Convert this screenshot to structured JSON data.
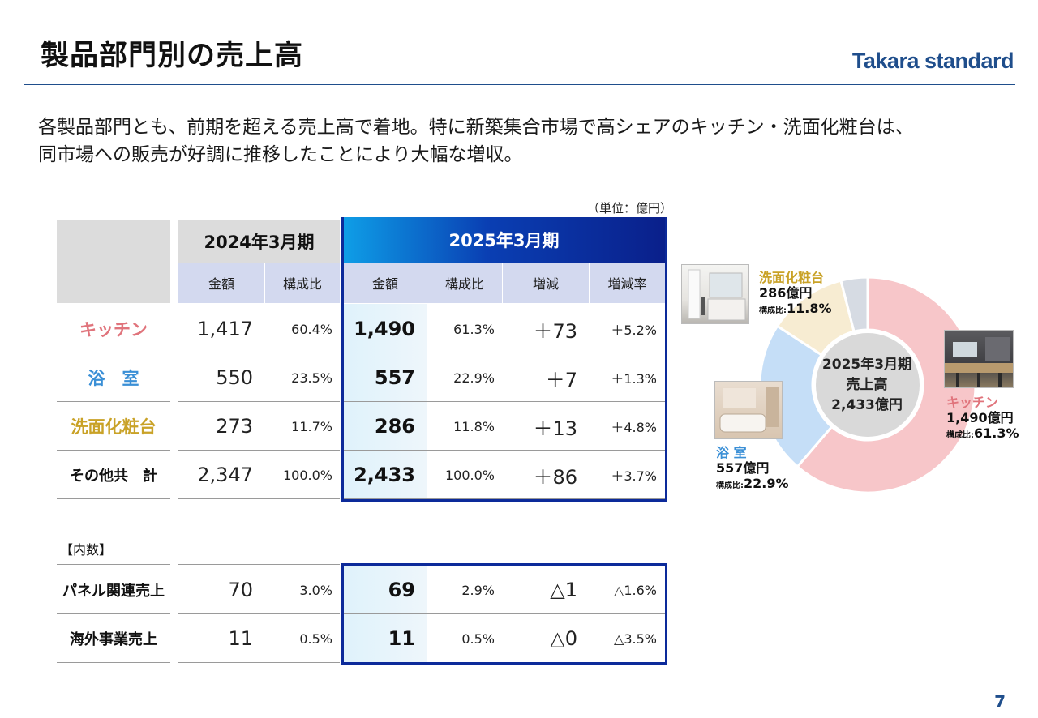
{
  "header": {
    "title": "製品部門別の売上高",
    "logo_text": "Takara standard"
  },
  "lead": {
    "line1": "各製品部門とも、前期を超える売上高で着地。特に新築集合市場で高シェアのキッチン・洗面化粧台は、",
    "line2": "同市場への販売が好調に推移したことにより大幅な増収。"
  },
  "unit_note": "（単位：億円）",
  "table": {
    "period_prev": "2024年3月期",
    "period_curr": "2025年3月期",
    "col_amount": "金額",
    "col_share": "構成比",
    "col_change": "増減",
    "col_rate": "増減率",
    "rows": [
      {
        "label": "キッチン",
        "color": "#e0747c",
        "prev_amount": "1,417",
        "prev_share": "60.4%",
        "curr_amount": "1,490",
        "curr_share": "61.3%",
        "change": "＋73",
        "rate": "＋5.2%"
      },
      {
        "label": "浴　室",
        "color": "#3a8fd6",
        "prev_amount": "550",
        "prev_share": "23.5%",
        "curr_amount": "557",
        "curr_share": "22.9%",
        "change": "＋7",
        "rate": "＋1.3%"
      },
      {
        "label": "洗面化粧台",
        "color": "#c9a227",
        "prev_amount": "273",
        "prev_share": "11.7%",
        "curr_amount": "286",
        "curr_share": "11.8%",
        "change": "＋13",
        "rate": "＋4.8%"
      },
      {
        "label": "その他共　計",
        "color": "#111111",
        "prev_amount": "2,347",
        "prev_share": "100.0%",
        "curr_amount": "2,433",
        "curr_share": "100.0%",
        "change": "＋86",
        "rate": "＋3.7%"
      }
    ],
    "breakdown_label": "【内数】",
    "breakdown_rows": [
      {
        "label": "パネル関連売上",
        "prev_amount": "70",
        "prev_share": "3.0%",
        "curr_amount": "69",
        "curr_share": "2.9%",
        "change": "△1",
        "rate": "△1.6%"
      },
      {
        "label": "海外事業売上",
        "prev_amount": "11",
        "prev_share": "0.5%",
        "curr_amount": "11",
        "curr_share": "0.5%",
        "change": "△0",
        "rate": "△3.5%"
      }
    ]
  },
  "chart_data": {
    "type": "pie",
    "center_label": [
      "2025年3月期",
      "売上高",
      "2,433億円"
    ],
    "slices": [
      {
        "name": "キッチン",
        "value": 61.3,
        "amount": "1,490億円",
        "share_label": "構成比:",
        "share": "61.3%",
        "color": "#f7c6c9",
        "label_color": "#e0747c"
      },
      {
        "name": "浴 室",
        "value": 22.9,
        "amount": "557億円",
        "share_label": "構成比:",
        "share": "22.9%",
        "color": "#c5def7",
        "label_color": "#3a8fd6"
      },
      {
        "name": "洗面化粧台",
        "value": 11.8,
        "amount": "286億円",
        "share_label": "構成比:",
        "share": "11.8%",
        "color": "#f7ecd2",
        "label_color": "#c9a227"
      },
      {
        "name": "その他",
        "value": 4.0,
        "color": "#d6dbe3"
      }
    ]
  },
  "page_number": "7"
}
